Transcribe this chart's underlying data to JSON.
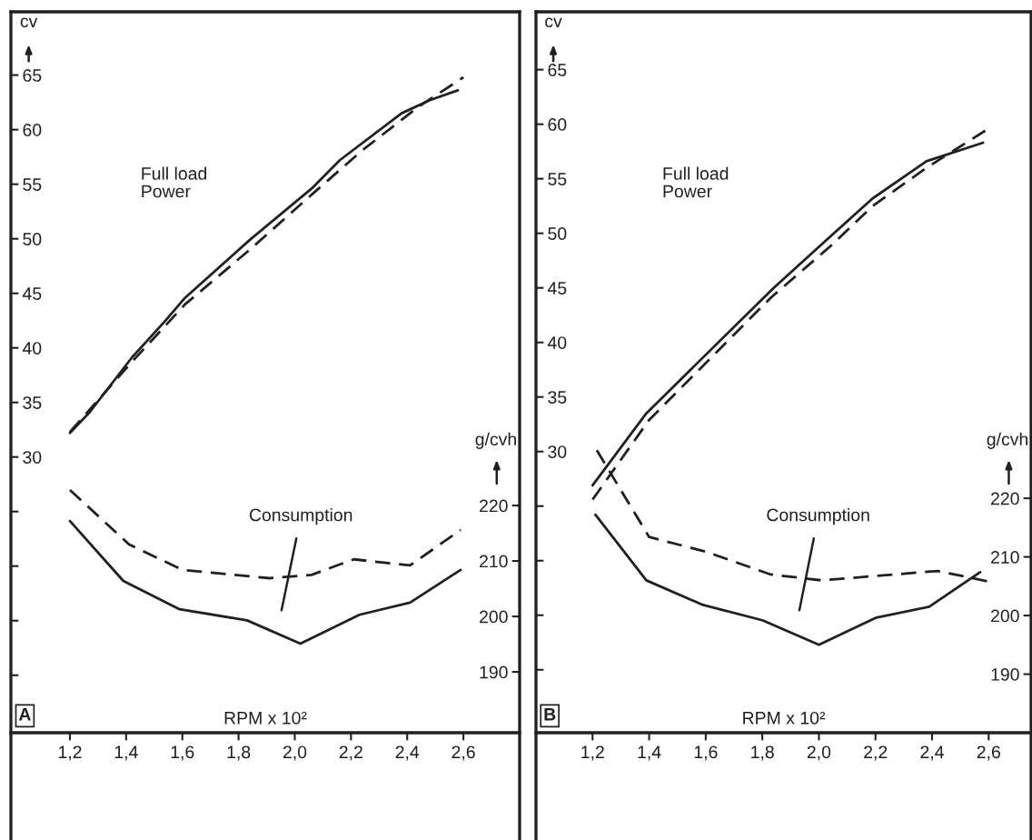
{
  "chart_data": [
    {
      "type": "line",
      "xlabel": "RPM x 10²",
      "ylabel": "cv",
      "y2label": "g/cvh",
      "xlim": [
        0.99,
        2.8
      ],
      "xticks": [
        {
          "value": 1.2,
          "label": "1,2"
        },
        {
          "value": 1.4,
          "label": "1,4"
        },
        {
          "value": 1.6,
          "label": "1,6"
        },
        {
          "value": 1.8,
          "label": "1,8"
        },
        {
          "value": 2.0,
          "label": "2,0"
        },
        {
          "value": 2.2,
          "label": "2,2"
        },
        {
          "value": 2.4,
          "label": "2,4"
        },
        {
          "value": 2.6,
          "label": "2,6"
        }
      ],
      "ylim": [
        -5.1,
        70.8
      ],
      "yticks": [
        65,
        60,
        55,
        50,
        45,
        40,
        35,
        30,
        {
          "value": 25,
          "label": null
        },
        {
          "value": 20,
          "label": null
        },
        {
          "value": 15,
          "label": null
        },
        {
          "value": 10,
          "label": null
        }
      ],
      "y2lim": [
        159.7,
        309
      ],
      "y2ticks": [
        220,
        210,
        200,
        190
      ],
      "annotations": [
        "Full load\nPower",
        "Consumption",
        "A"
      ],
      "series": [
        {
          "type": "line",
          "axis": "y",
          "line_style": "solid",
          "color": "#231f20",
          "x": [
            1.2,
            1.27,
            1.42,
            1.54,
            1.61,
            1.84,
            2.06,
            2.16,
            2.38,
            2.48,
            2.58
          ],
          "values": [
            32.2,
            34.1,
            39.1,
            42.5,
            44.6,
            49.9,
            54.6,
            57.2,
            61.5,
            62.7,
            63.6
          ]
        },
        {
          "type": "line",
          "axis": "y",
          "line_style": "dashed",
          "color": "#231f20",
          "x": [
            1.2,
            1.42,
            1.61,
            1.84,
            2.08,
            2.24,
            2.44,
            2.6
          ],
          "values": [
            32.3,
            38.7,
            44.0,
            49.0,
            54.5,
            58.1,
            62.1,
            64.8
          ]
        },
        {
          "type": "line",
          "axis": "y2",
          "line_style": "solid",
          "color": "#231f20",
          "x": [
            1.2,
            1.39,
            1.59,
            1.83,
            2.02,
            2.23,
            2.41,
            2.59
          ],
          "values": [
            217.2,
            206.4,
            201.3,
            199.3,
            195.1,
            200.3,
            202.5,
            208.4
          ]
        },
        {
          "type": "line",
          "axis": "y2",
          "line_style": "dashed",
          "color": "#231f20",
          "x": [
            1.2,
            1.41,
            1.6,
            1.91,
            2.06,
            2.21,
            2.41,
            2.59
          ],
          "values": [
            222.8,
            213.0,
            208.4,
            206.9,
            207.5,
            210.3,
            209.2,
            215.6
          ]
        }
      ]
    },
    {
      "type": "line",
      "xlabel": "RPM x 10²",
      "ylabel": "cv",
      "y2label": "g/cvh",
      "xlim": [
        1.0,
        2.75
      ],
      "xticks": [
        {
          "value": 1.2,
          "label": "1,2"
        },
        {
          "value": 1.4,
          "label": "1,4"
        },
        {
          "value": 1.6,
          "label": "1,6"
        },
        {
          "value": 1.8,
          "label": "1,8"
        },
        {
          "value": 2.0,
          "label": "2,0"
        },
        {
          "value": 2.2,
          "label": "2,2"
        },
        {
          "value": 2.4,
          "label": "2,4"
        },
        {
          "value": 2.6,
          "label": "2,6"
        }
      ],
      "ylim": [
        -5.6,
        70.3
      ],
      "yticks": [
        65,
        60,
        55,
        50,
        45,
        40,
        35,
        30,
        {
          "value": 25,
          "label": null
        },
        {
          "value": 20,
          "label": null
        },
        {
          "value": 15,
          "label": null
        },
        {
          "value": 10,
          "label": null
        }
      ],
      "y2lim": [
        161.7,
        303
      ],
      "y2ticks": [
        220,
        210,
        200,
        190
      ],
      "annotations": [
        "Full load\nPower",
        "Consumption",
        "B"
      ],
      "series": [
        {
          "type": "line",
          "axis": "y",
          "line_style": "solid",
          "color": "#231f20",
          "x": [
            1.2,
            1.39,
            1.84,
            2.04,
            2.19,
            2.38,
            2.58
          ],
          "values": [
            26.9,
            33.5,
            45.0,
            49.7,
            53.2,
            56.6,
            58.3
          ]
        },
        {
          "type": "line",
          "axis": "y",
          "line_style": "dashed",
          "color": "#231f20",
          "x": [
            1.2,
            1.4,
            1.83,
            2.04,
            2.19,
            2.38,
            2.6
          ],
          "values": [
            25.6,
            32.9,
            44.1,
            48.8,
            52.5,
            56.0,
            59.6
          ]
        },
        {
          "type": "line",
          "axis": "y2",
          "line_style": "solid",
          "color": "#231f20",
          "x": [
            1.21,
            1.39,
            1.59,
            1.8,
            2.0,
            2.2,
            2.39,
            2.57
          ],
          "values": [
            217.2,
            206.0,
            201.8,
            199.2,
            195.0,
            199.6,
            201.5,
            207.4
          ]
        },
        {
          "type": "line",
          "axis": "y2",
          "line_style": "dashed",
          "color": "#231f20",
          "x": [
            1.215,
            1.4,
            1.6,
            1.83,
            2.01,
            2.42,
            2.61
          ],
          "values": [
            228.2,
            213.4,
            210.9,
            207.0,
            206.0,
            207.6,
            205.7
          ]
        }
      ]
    }
  ]
}
